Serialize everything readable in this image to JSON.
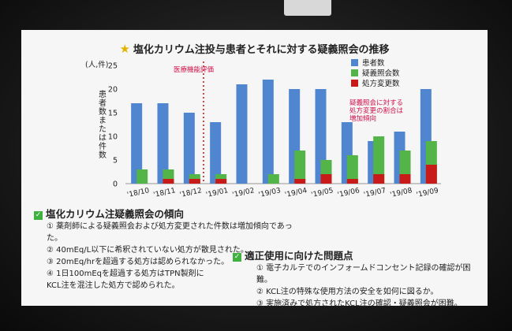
{
  "title": "塩化カリウム注投与患者とそれに対する疑義照会の推移",
  "icons": {
    "title_icon": "star-icon",
    "check_icon": "check-icon"
  },
  "colors": {
    "patients": "#4f86cf",
    "inquiries": "#53b447",
    "changes": "#c91a1a",
    "annotation": "#d0104b"
  },
  "chart_data": {
    "type": "bar",
    "units_label": "(人,件)",
    "ylabel": "患者数または件数",
    "ylim": [
      0,
      25
    ],
    "yticks": [
      0,
      5,
      10,
      15,
      20,
      25
    ],
    "categories": [
      "'18/10",
      "'18/11",
      "'18/12",
      "'19/01",
      "'19/02",
      "'19/03",
      "'19/04",
      "'19/05",
      "'19/06",
      "'19/07",
      "'19/08",
      "'19/09"
    ],
    "series": [
      {
        "name": "患者数",
        "values": [
          17,
          17,
          15,
          13,
          21,
          22,
          20,
          20,
          13,
          9,
          11,
          20
        ]
      },
      {
        "name": "疑義照会数",
        "values": [
          3,
          3,
          2,
          2,
          0,
          2,
          7,
          5,
          6,
          10,
          7,
          9
        ]
      },
      {
        "name": "処方変更数",
        "values": [
          0,
          1,
          1,
          1,
          0,
          0,
          1,
          2,
          1,
          2,
          2,
          4
        ]
      }
    ],
    "legend_position": "top-right",
    "annotations": {
      "evaluation": "医療機能評価",
      "trend": "疑義照会に対する処方変更の割合は増加傾向"
    }
  },
  "section1": {
    "heading": "塩化カリウム注疑義照会の傾向",
    "items": [
      "① 薬剤師による疑義照会および処方変更された件数は増加傾向であった。",
      "② 40mEq/L以下に希釈されていない処方が散見された。",
      "③ 20mEq/hrを超過する処方は認められなかった。",
      "④ 1日100mEqを超過する処方はTPN製剤に",
      "KCL注を混注した処方で認められた。"
    ]
  },
  "section2": {
    "heading": "適正使用に向けた問題点",
    "items": [
      "① 電子カルテでのインフォームドコンセント記録の確認が困難。",
      "② KCL注の特殊な使用方法の安全を如何に図るか。",
      "③ 実施済みで処方されたKCL注の確認・疑義照会が困難。"
    ]
  }
}
